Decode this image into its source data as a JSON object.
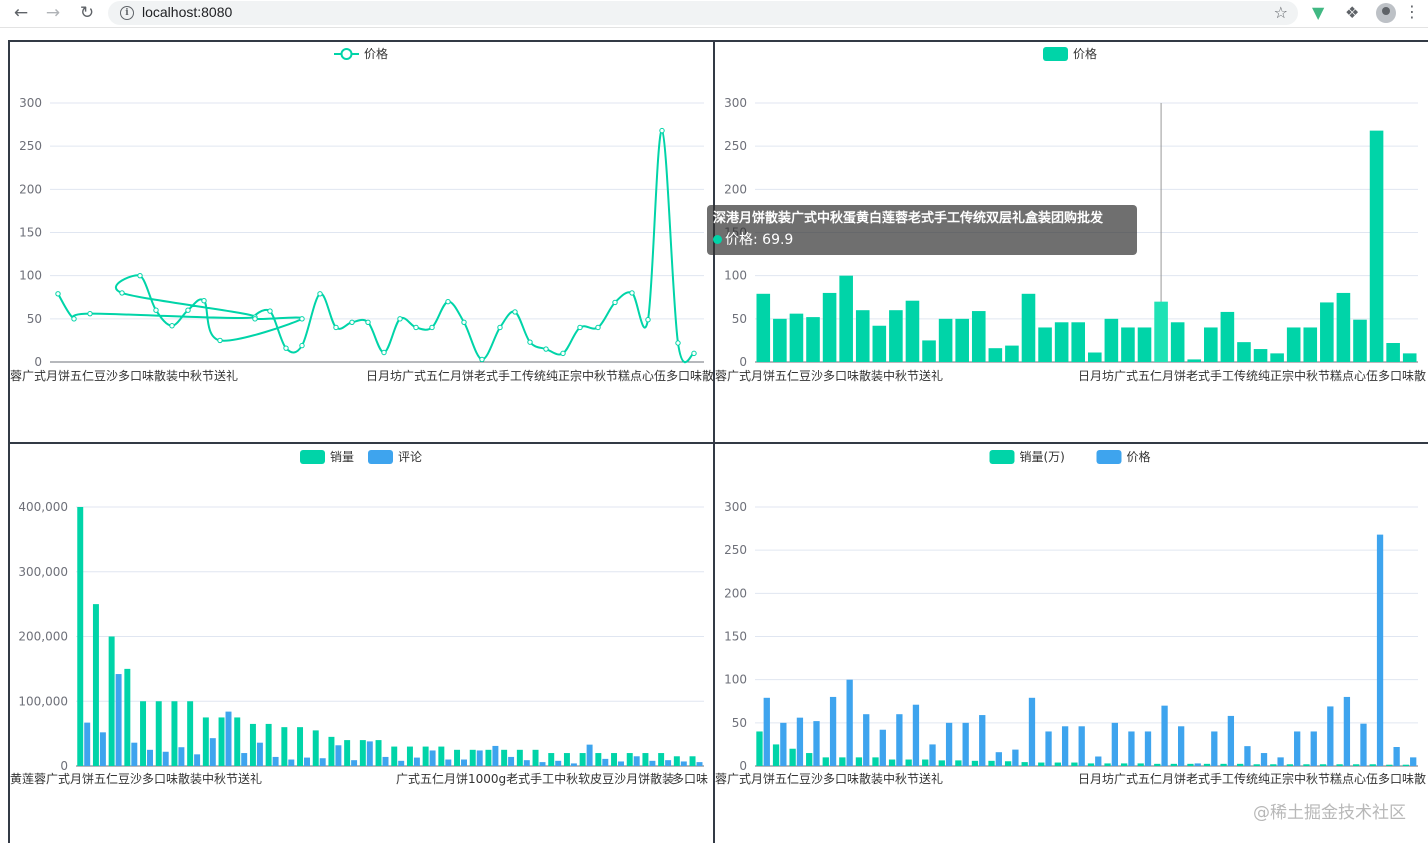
{
  "browser": {
    "url": "localhost:8080",
    "icons": [
      "back-arrow-icon",
      "forward-arrow-icon",
      "reload-icon",
      "info-icon",
      "star-icon",
      "vue-devtools-icon",
      "extensions-puzzle-icon",
      "profile-avatar-icon",
      "kebab-menu-icon"
    ]
  },
  "watermark": "@稀土掘金技术社区",
  "tooltip": {
    "title": "深港月饼散装广式中秋蛋黄白莲蓉老式手工传统双层礼盒装团购批发",
    "series": "价格",
    "value": "69.9"
  },
  "axis_labels": {
    "top_left": "蓉广式月饼五仁豆沙多口味散装中秋节送礼",
    "top_right": "日月坊广式五仁月饼老式手工传统纯正宗中秋节糕点心伍多口味散",
    "bottom_left": "黄莲蓉广式月饼五仁豆沙多口味散装中秋节送礼",
    "bottom_mid": "广式五仁月饼1000g老式手工中秋软皮豆沙月饼散装",
    "bottom_right": "多口味"
  },
  "colors": {
    "green": "#00d4a8",
    "blue": "#3ea4ee"
  },
  "chart_data": [
    {
      "type": "line",
      "smooth": true,
      "legend": [
        "价格"
      ],
      "legend_position": "top-center",
      "ylim": [
        0,
        300
      ],
      "yticks": [
        0,
        50,
        100,
        150,
        200,
        250,
        300
      ],
      "series": [
        {
          "name": "价格",
          "values": [
            79,
            50,
            56,
            52,
            80,
            100,
            60,
            42,
            60,
            71,
            25,
            50,
            50,
            59,
            16,
            19,
            79,
            40,
            46,
            46,
            11,
            50,
            40,
            40,
            69.9,
            46,
            3,
            40,
            58,
            23,
            15,
            10,
            40,
            40,
            69,
            80,
            49,
            268,
            22,
            10
          ]
        }
      ]
    },
    {
      "type": "bar",
      "legend": [
        "价格"
      ],
      "legend_position": "top-center",
      "ylim": [
        0,
        300
      ],
      "yticks": [
        0,
        50,
        100,
        150,
        200,
        250,
        300
      ],
      "highlight_index": 24,
      "series": [
        {
          "name": "价格",
          "values": [
            79,
            50,
            56,
            52,
            80,
            100,
            60,
            42,
            60,
            71,
            25,
            50,
            50,
            59,
            16,
            19,
            79,
            40,
            46,
            46,
            11,
            50,
            40,
            40,
            69.9,
            46,
            3,
            40,
            58,
            23,
            15,
            10,
            40,
            40,
            69,
            80,
            49,
            268,
            22,
            10
          ]
        }
      ]
    },
    {
      "type": "bar",
      "legend": [
        "销量",
        "评论"
      ],
      "legend_position": "top-center",
      "ylim": [
        0,
        400000
      ],
      "yticks": [
        0,
        100000,
        200000,
        300000,
        400000
      ],
      "series": [
        {
          "name": "销量",
          "values": [
            400000,
            250000,
            200000,
            150000,
            100000,
            100000,
            100000,
            100000,
            75000,
            75000,
            75000,
            65000,
            65000,
            60000,
            60000,
            55000,
            45000,
            40000,
            40000,
            40000,
            30000,
            30000,
            30000,
            30000,
            25000,
            25000,
            25000,
            25000,
            25000,
            25000,
            20000,
            20000,
            20000,
            20000,
            20000,
            20000,
            20000,
            20000,
            15000,
            15000
          ]
        },
        {
          "name": "评论",
          "values": [
            67000,
            52000,
            142000,
            36000,
            25000,
            22000,
            29000,
            18000,
            43000,
            84000,
            20000,
            36000,
            14000,
            10000,
            13000,
            12000,
            32000,
            9000,
            38000,
            14000,
            8000,
            13000,
            24000,
            10000,
            10000,
            24000,
            31000,
            14000,
            9000,
            6000,
            8000,
            4000,
            33000,
            11000,
            7000,
            15000,
            8000,
            9000,
            7000,
            6000
          ]
        }
      ]
    },
    {
      "type": "bar",
      "legend": [
        "销量(万)",
        "价格"
      ],
      "legend_position": "top-center",
      "ylim": [
        0,
        300
      ],
      "yticks": [
        0,
        50,
        100,
        150,
        200,
        250,
        300
      ],
      "series": [
        {
          "name": "销量(万)",
          "values": [
            40,
            25,
            20,
            15,
            10,
            10,
            10,
            10,
            7.5,
            7.5,
            7.5,
            6.5,
            6.5,
            6,
            6,
            5.5,
            4.5,
            4,
            4,
            4,
            3,
            3,
            3,
            3,
            2.5,
            2.5,
            2.5,
            2.5,
            2.5,
            2.5,
            2,
            2,
            2,
            2,
            2,
            2,
            2,
            2,
            1.5,
            1.5
          ]
        },
        {
          "name": "价格",
          "values": [
            79,
            50,
            56,
            52,
            80,
            100,
            60,
            42,
            60,
            71,
            25,
            50,
            50,
            59,
            16,
            19,
            79,
            40,
            46,
            46,
            11,
            50,
            40,
            40,
            69.9,
            46,
            3,
            40,
            58,
            23,
            15,
            10,
            40,
            40,
            69,
            80,
            49,
            268,
            22,
            10
          ]
        }
      ]
    }
  ]
}
